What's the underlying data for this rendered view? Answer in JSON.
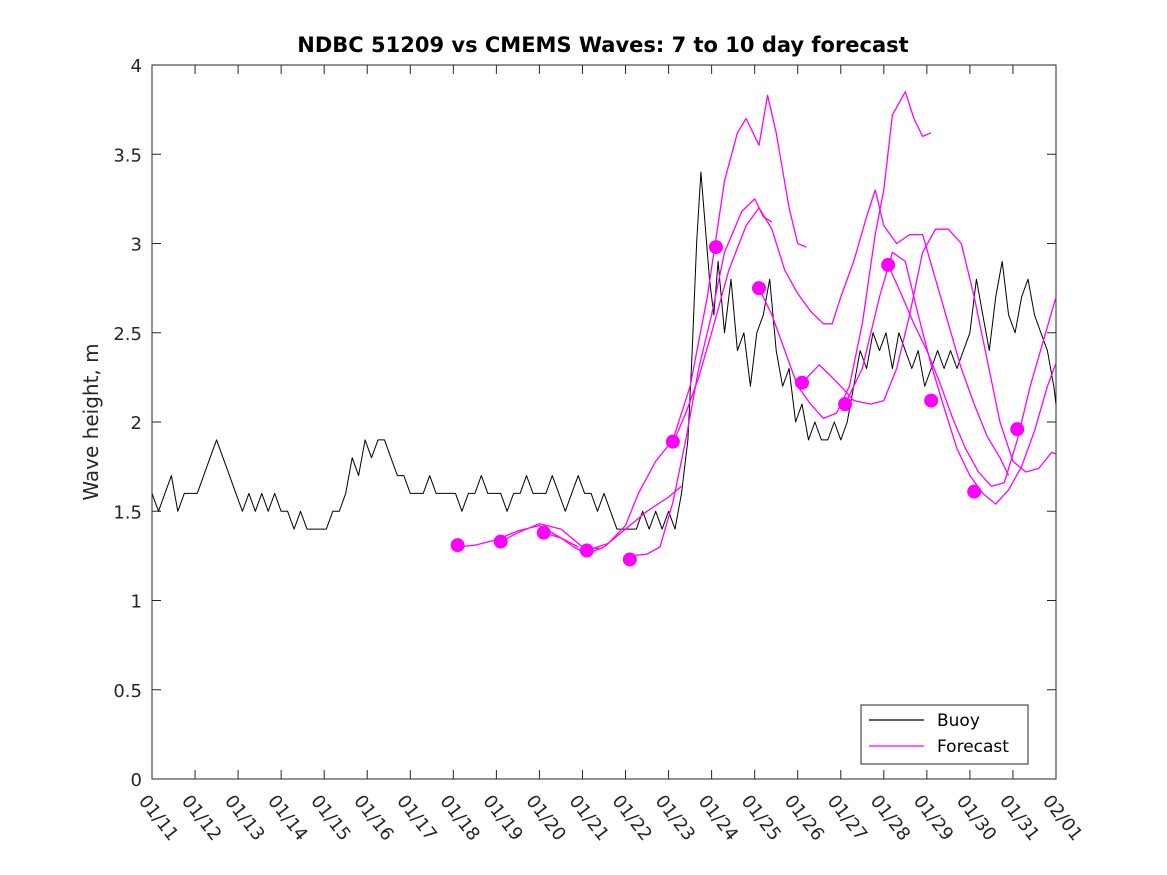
{
  "chart_data": {
    "type": "line",
    "title": "NDBC 51209 vs CMEMS Waves: 7 to 10 day forecast",
    "xlabel": "",
    "ylabel": "Wave height, m",
    "xlim": [
      0,
      21
    ],
    "ylim": [
      0,
      4
    ],
    "grid": false,
    "legend_position": "bottom-right",
    "x_tick_labels": [
      "01/11",
      "01/12",
      "01/13",
      "01/14",
      "01/15",
      "01/16",
      "01/17",
      "01/18",
      "01/19",
      "01/20",
      "01/21",
      "01/22",
      "01/23",
      "01/24",
      "01/25",
      "01/26",
      "01/27",
      "01/28",
      "01/29",
      "01/30",
      "01/31",
      "02/01"
    ],
    "y_ticks": [
      0,
      0.5,
      1,
      1.5,
      2,
      2.5,
      3,
      3.5,
      4
    ],
    "y_tick_labels": [
      "0",
      "0.5",
      "1",
      "1.5",
      "2",
      "2.5",
      "3",
      "3.5",
      "4"
    ],
    "colors": {
      "buoy": "#000000",
      "forecast": "#ff00ff"
    },
    "legend": [
      {
        "name": "Buoy",
        "color": "#000000"
      },
      {
        "name": "Forecast",
        "color": "#ff00ff"
      }
    ],
    "buoy_series": {
      "name": "Buoy",
      "points": [
        [
          0.0,
          1.6
        ],
        [
          0.15,
          1.5
        ],
        [
          0.3,
          1.6
        ],
        [
          0.45,
          1.7
        ],
        [
          0.6,
          1.5
        ],
        [
          0.75,
          1.6
        ],
        [
          0.9,
          1.6
        ],
        [
          1.05,
          1.6
        ],
        [
          1.2,
          1.7
        ],
        [
          1.35,
          1.8
        ],
        [
          1.5,
          1.9
        ],
        [
          1.65,
          1.8
        ],
        [
          1.8,
          1.7
        ],
        [
          1.95,
          1.6
        ],
        [
          2.1,
          1.5
        ],
        [
          2.25,
          1.6
        ],
        [
          2.4,
          1.5
        ],
        [
          2.55,
          1.6
        ],
        [
          2.7,
          1.5
        ],
        [
          2.85,
          1.6
        ],
        [
          3.0,
          1.5
        ],
        [
          3.15,
          1.5
        ],
        [
          3.3,
          1.4
        ],
        [
          3.45,
          1.5
        ],
        [
          3.6,
          1.4
        ],
        [
          3.75,
          1.4
        ],
        [
          3.9,
          1.4
        ],
        [
          4.05,
          1.4
        ],
        [
          4.2,
          1.5
        ],
        [
          4.35,
          1.5
        ],
        [
          4.5,
          1.6
        ],
        [
          4.65,
          1.8
        ],
        [
          4.8,
          1.7
        ],
        [
          4.95,
          1.9
        ],
        [
          5.1,
          1.8
        ],
        [
          5.25,
          1.9
        ],
        [
          5.4,
          1.9
        ],
        [
          5.55,
          1.8
        ],
        [
          5.7,
          1.7
        ],
        [
          5.85,
          1.7
        ],
        [
          6.0,
          1.6
        ],
        [
          6.15,
          1.6
        ],
        [
          6.3,
          1.6
        ],
        [
          6.45,
          1.7
        ],
        [
          6.6,
          1.6
        ],
        [
          6.75,
          1.6
        ],
        [
          6.9,
          1.6
        ],
        [
          7.05,
          1.6
        ],
        [
          7.2,
          1.5
        ],
        [
          7.35,
          1.6
        ],
        [
          7.5,
          1.6
        ],
        [
          7.65,
          1.7
        ],
        [
          7.8,
          1.6
        ],
        [
          7.95,
          1.6
        ],
        [
          8.1,
          1.6
        ],
        [
          8.25,
          1.5
        ],
        [
          8.4,
          1.6
        ],
        [
          8.55,
          1.6
        ],
        [
          8.7,
          1.7
        ],
        [
          8.85,
          1.6
        ],
        [
          9.0,
          1.6
        ],
        [
          9.15,
          1.6
        ],
        [
          9.3,
          1.7
        ],
        [
          9.45,
          1.6
        ],
        [
          9.6,
          1.5
        ],
        [
          9.75,
          1.6
        ],
        [
          9.9,
          1.7
        ],
        [
          10.05,
          1.6
        ],
        [
          10.2,
          1.6
        ],
        [
          10.35,
          1.5
        ],
        [
          10.5,
          1.6
        ],
        [
          10.65,
          1.5
        ],
        [
          10.8,
          1.4
        ],
        [
          10.95,
          1.4
        ],
        [
          11.1,
          1.4
        ],
        [
          11.25,
          1.4
        ],
        [
          11.4,
          1.5
        ],
        [
          11.55,
          1.4
        ],
        [
          11.7,
          1.5
        ],
        [
          11.85,
          1.4
        ],
        [
          12.0,
          1.5
        ],
        [
          12.15,
          1.4
        ],
        [
          12.3,
          1.6
        ],
        [
          12.45,
          1.9
        ],
        [
          12.55,
          2.4
        ],
        [
          12.65,
          3.0
        ],
        [
          12.75,
          3.4
        ],
        [
          12.85,
          3.1
        ],
        [
          12.95,
          2.8
        ],
        [
          13.05,
          2.6
        ],
        [
          13.15,
          2.9
        ],
        [
          13.3,
          2.5
        ],
        [
          13.45,
          2.8
        ],
        [
          13.6,
          2.4
        ],
        [
          13.75,
          2.5
        ],
        [
          13.9,
          2.2
        ],
        [
          14.05,
          2.5
        ],
        [
          14.2,
          2.6
        ],
        [
          14.35,
          2.8
        ],
        [
          14.5,
          2.4
        ],
        [
          14.65,
          2.2
        ],
        [
          14.8,
          2.3
        ],
        [
          14.95,
          2.0
        ],
        [
          15.1,
          2.1
        ],
        [
          15.25,
          1.9
        ],
        [
          15.4,
          2.0
        ],
        [
          15.55,
          1.9
        ],
        [
          15.7,
          1.9
        ],
        [
          15.85,
          2.0
        ],
        [
          16.0,
          1.9
        ],
        [
          16.15,
          2.0
        ],
        [
          16.3,
          2.2
        ],
        [
          16.45,
          2.4
        ],
        [
          16.6,
          2.3
        ],
        [
          16.75,
          2.5
        ],
        [
          16.9,
          2.4
        ],
        [
          17.05,
          2.5
        ],
        [
          17.2,
          2.3
        ],
        [
          17.35,
          2.5
        ],
        [
          17.5,
          2.4
        ],
        [
          17.65,
          2.3
        ],
        [
          17.8,
          2.4
        ],
        [
          17.95,
          2.2
        ],
        [
          18.1,
          2.3
        ],
        [
          18.25,
          2.4
        ],
        [
          18.4,
          2.3
        ],
        [
          18.55,
          2.4
        ],
        [
          18.7,
          2.3
        ],
        [
          18.85,
          2.4
        ],
        [
          19.0,
          2.5
        ],
        [
          19.15,
          2.8
        ],
        [
          19.3,
          2.6
        ],
        [
          19.45,
          2.4
        ],
        [
          19.6,
          2.7
        ],
        [
          19.75,
          2.9
        ],
        [
          19.9,
          2.6
        ],
        [
          20.05,
          2.5
        ],
        [
          20.2,
          2.7
        ],
        [
          20.35,
          2.8
        ],
        [
          20.5,
          2.6
        ],
        [
          20.65,
          2.5
        ],
        [
          20.8,
          2.4
        ],
        [
          20.95,
          2.2
        ],
        [
          21.0,
          2.1
        ]
      ]
    },
    "forecast_series": [
      {
        "name": "Forecast run 1",
        "points": [
          [
            7.1,
            1.3
          ],
          [
            7.5,
            1.31
          ],
          [
            8.0,
            1.34
          ],
          [
            8.5,
            1.39
          ],
          [
            9.0,
            1.42
          ],
          [
            9.5,
            1.35
          ],
          [
            9.9,
            1.3
          ]
        ]
      },
      {
        "name": "Forecast run 2",
        "points": [
          [
            8.1,
            1.33
          ],
          [
            8.5,
            1.38
          ],
          [
            9.0,
            1.43
          ],
          [
            9.5,
            1.4
          ],
          [
            10.0,
            1.3
          ],
          [
            10.4,
            1.29
          ]
        ]
      },
      {
        "name": "Forecast run 3",
        "points": [
          [
            9.1,
            1.38
          ],
          [
            9.5,
            1.35
          ],
          [
            9.8,
            1.3
          ],
          [
            10.1,
            1.26
          ],
          [
            10.5,
            1.3
          ],
          [
            11.0,
            1.4
          ],
          [
            11.5,
            1.5
          ],
          [
            12.0,
            1.58
          ],
          [
            12.3,
            1.64
          ]
        ]
      },
      {
        "name": "Forecast run 4",
        "points": [
          [
            10.1,
            1.28
          ],
          [
            10.6,
            1.32
          ],
          [
            11.0,
            1.42
          ],
          [
            11.3,
            1.6
          ],
          [
            11.7,
            1.78
          ],
          [
            12.1,
            1.9
          ],
          [
            12.5,
            2.2
          ],
          [
            12.9,
            2.7
          ],
          [
            13.3,
            3.35
          ],
          [
            13.6,
            3.62
          ],
          [
            13.8,
            3.7
          ],
          [
            14.1,
            3.55
          ],
          [
            14.3,
            3.83
          ],
          [
            14.5,
            3.62
          ],
          [
            14.8,
            3.2
          ],
          [
            15.0,
            3.0
          ],
          [
            15.2,
            2.98
          ]
        ]
      },
      {
        "name": "Forecast run 5",
        "points": [
          [
            11.1,
            1.25
          ],
          [
            11.5,
            1.26
          ],
          [
            11.8,
            1.3
          ],
          [
            12.1,
            1.55
          ],
          [
            12.4,
            1.9
          ],
          [
            12.7,
            2.3
          ],
          [
            13.0,
            2.6
          ],
          [
            13.3,
            2.95
          ],
          [
            13.7,
            3.18
          ],
          [
            14.0,
            3.25
          ],
          [
            14.2,
            3.15
          ],
          [
            14.4,
            3.12
          ]
        ]
      },
      {
        "name": "Forecast run 6",
        "points": [
          [
            12.1,
            1.88
          ],
          [
            12.4,
            2.05
          ],
          [
            12.7,
            2.25
          ],
          [
            13.0,
            2.5
          ],
          [
            13.4,
            2.85
          ],
          [
            13.8,
            3.1
          ],
          [
            14.1,
            3.2
          ],
          [
            14.4,
            3.08
          ],
          [
            14.7,
            2.85
          ],
          [
            15.0,
            2.72
          ],
          [
            15.3,
            2.62
          ],
          [
            15.6,
            2.55
          ],
          [
            15.8,
            2.55
          ],
          [
            16.0,
            2.7
          ],
          [
            16.3,
            2.9
          ],
          [
            16.6,
            3.15
          ],
          [
            16.8,
            3.3
          ],
          [
            17.0,
            3.1
          ],
          [
            17.3,
            3.0
          ],
          [
            17.6,
            3.05
          ],
          [
            17.9,
            3.05
          ],
          [
            18.2,
            2.8
          ],
          [
            18.5,
            2.55
          ],
          [
            18.8,
            2.3
          ],
          [
            19.1,
            2.1
          ],
          [
            19.4,
            1.92
          ],
          [
            19.7,
            1.8
          ],
          [
            19.9,
            1.7
          ]
        ]
      },
      {
        "name": "Forecast run 7",
        "points": [
          [
            14.1,
            2.75
          ],
          [
            14.4,
            2.6
          ],
          [
            14.7,
            2.4
          ],
          [
            15.0,
            2.2
          ],
          [
            15.3,
            2.1
          ],
          [
            15.6,
            2.02
          ],
          [
            15.9,
            2.05
          ],
          [
            16.2,
            2.2
          ],
          [
            16.5,
            2.55
          ],
          [
            16.8,
            3.05
          ],
          [
            17.0,
            3.3
          ],
          [
            17.2,
            3.72
          ],
          [
            17.5,
            3.85
          ],
          [
            17.7,
            3.7
          ],
          [
            17.9,
            3.6
          ],
          [
            18.1,
            3.62
          ]
        ]
      },
      {
        "name": "Forecast run 8",
        "points": [
          [
            15.1,
            2.22
          ],
          [
            15.5,
            2.32
          ],
          [
            15.8,
            2.25
          ],
          [
            16.0,
            2.2
          ],
          [
            16.3,
            2.12
          ],
          [
            16.7,
            2.1
          ],
          [
            17.0,
            2.12
          ],
          [
            17.3,
            2.3
          ],
          [
            17.6,
            2.6
          ],
          [
            17.9,
            2.95
          ],
          [
            18.2,
            3.08
          ],
          [
            18.5,
            3.08
          ],
          [
            18.8,
            3.0
          ],
          [
            19.1,
            2.7
          ],
          [
            19.4,
            2.35
          ],
          [
            19.7,
            2.0
          ],
          [
            20.0,
            1.78
          ],
          [
            20.3,
            1.72
          ],
          [
            20.6,
            1.74
          ],
          [
            20.9,
            1.83
          ],
          [
            21.0,
            1.82
          ]
        ]
      },
      {
        "name": "Forecast run 9",
        "points": [
          [
            16.1,
            2.1
          ],
          [
            16.5,
            2.3
          ],
          [
            16.9,
            2.7
          ],
          [
            17.2,
            2.95
          ],
          [
            17.5,
            2.9
          ],
          [
            17.8,
            2.6
          ],
          [
            18.1,
            2.32
          ],
          [
            18.4,
            2.08
          ],
          [
            18.7,
            1.85
          ],
          [
            19.0,
            1.7
          ],
          [
            19.3,
            1.6
          ],
          [
            19.6,
            1.54
          ],
          [
            19.9,
            1.62
          ],
          [
            20.2,
            1.75
          ],
          [
            20.5,
            1.95
          ],
          [
            20.8,
            2.2
          ],
          [
            21.0,
            2.33
          ]
        ]
      },
      {
        "name": "Forecast run 10",
        "points": [
          [
            17.1,
            2.88
          ],
          [
            17.4,
            2.72
          ],
          [
            17.7,
            2.55
          ],
          [
            18.0,
            2.4
          ],
          [
            18.3,
            2.22
          ],
          [
            18.6,
            2.02
          ],
          [
            18.9,
            1.85
          ],
          [
            19.2,
            1.72
          ],
          [
            19.5,
            1.64
          ],
          [
            19.8,
            1.66
          ],
          [
            20.1,
            1.9
          ],
          [
            20.4,
            2.2
          ],
          [
            20.7,
            2.45
          ],
          [
            21.0,
            2.7
          ]
        ]
      }
    ],
    "forecast_markers": [
      {
        "x": 7.1,
        "y": 1.31
      },
      {
        "x": 8.1,
        "y": 1.33
      },
      {
        "x": 9.1,
        "y": 1.38
      },
      {
        "x": 10.1,
        "y": 1.28
      },
      {
        "x": 11.1,
        "y": 1.23
      },
      {
        "x": 12.1,
        "y": 1.89
      },
      {
        "x": 13.1,
        "y": 2.98
      },
      {
        "x": 14.1,
        "y": 2.75
      },
      {
        "x": 15.1,
        "y": 2.22
      },
      {
        "x": 16.1,
        "y": 2.1
      },
      {
        "x": 17.1,
        "y": 2.88
      },
      {
        "x": 18.1,
        "y": 2.12
      },
      {
        "x": 19.1,
        "y": 1.61
      },
      {
        "x": 20.1,
        "y": 1.96
      }
    ]
  }
}
